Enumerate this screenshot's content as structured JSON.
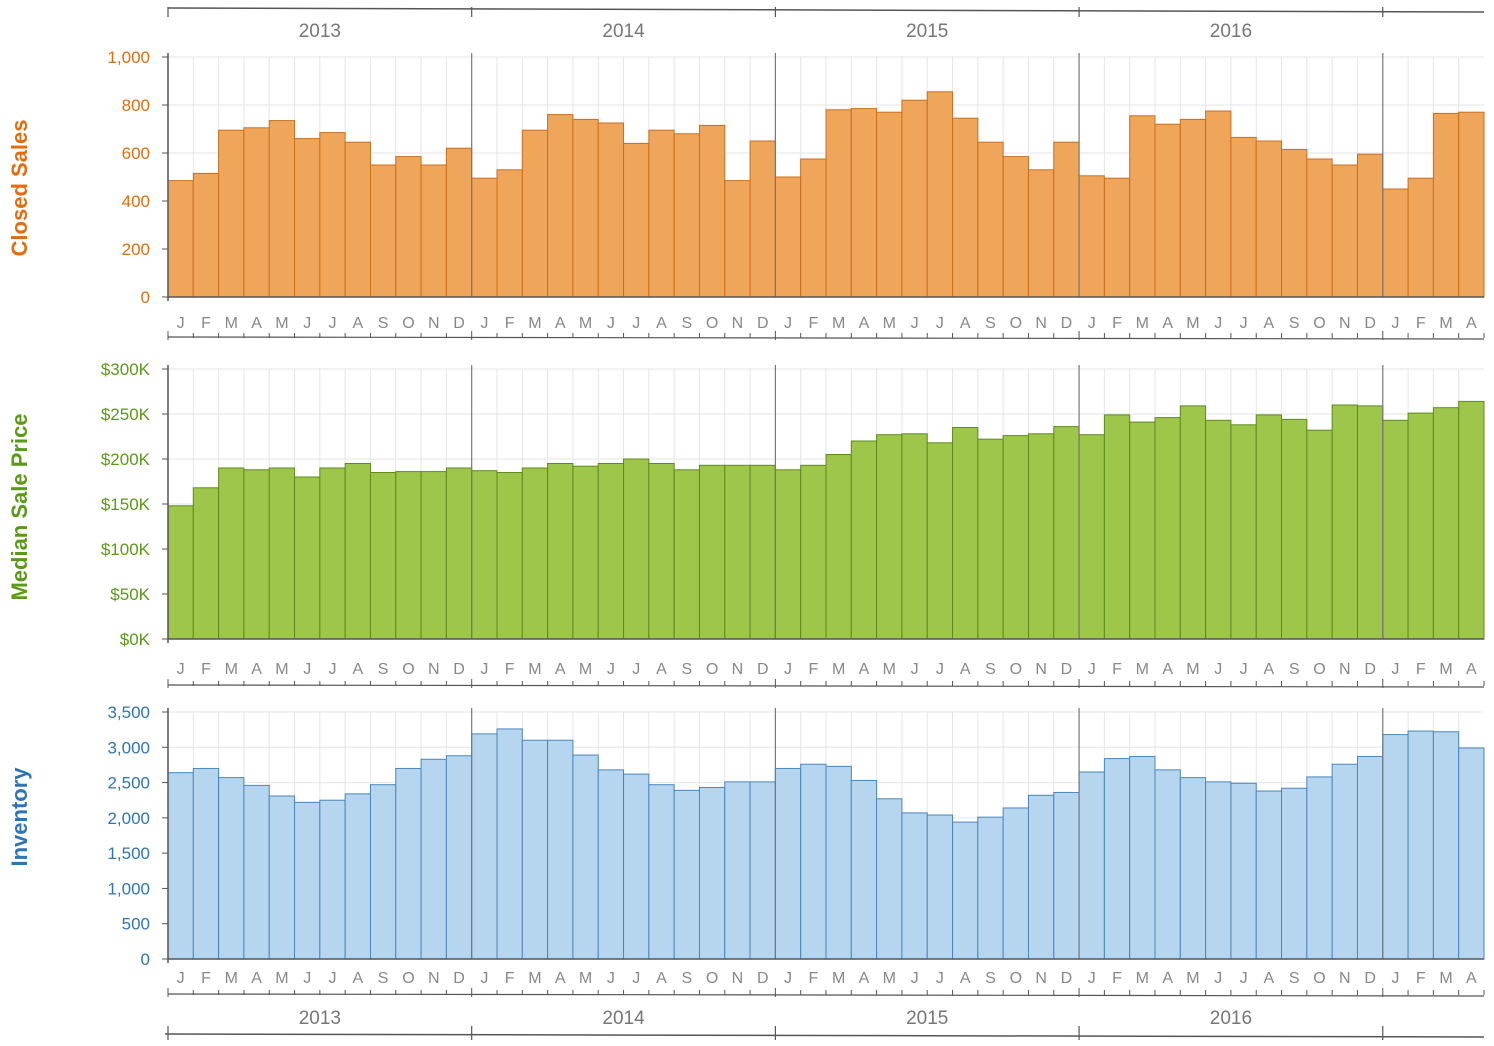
{
  "years": [
    "2013",
    "2014",
    "2015",
    "2016"
  ],
  "month_letters": [
    "J",
    "F",
    "M",
    "A",
    "M",
    "J",
    "J",
    "A",
    "S",
    "O",
    "N",
    "D",
    "J",
    "F",
    "M",
    "A",
    "M",
    "J",
    "J",
    "A",
    "S",
    "O",
    "N",
    "D",
    "J",
    "F",
    "M",
    "A",
    "M",
    "J",
    "J",
    "A",
    "S",
    "O",
    "N",
    "D",
    "J",
    "F",
    "M",
    "A",
    "M",
    "J",
    "J",
    "A",
    "S",
    "O",
    "N",
    "D",
    "J",
    "F",
    "M",
    "A"
  ],
  "colors": {
    "sales_fill": "#f0a65a",
    "sales_stroke": "#c96f1e",
    "sales_label": "#e46c0a",
    "price_fill": "#9dc64a",
    "price_stroke": "#5f8a1e",
    "price_label": "#5a9a16",
    "inv_fill": "#b6d6f0",
    "inv_stroke": "#4a86bb",
    "inv_label": "#2e75b6",
    "axis": "#555555",
    "grid": "#e6e6e6",
    "year_text": "#777777",
    "month_text": "#888888"
  },
  "chart_data": [
    {
      "type": "bar",
      "ylabel": "Closed Sales",
      "ylim": [
        0,
        1000
      ],
      "yticks": [
        "0",
        "200",
        "400",
        "600",
        "800",
        "1,000"
      ],
      "grid": true,
      "x": [
        "Jan 2013",
        "Feb 2013",
        "Mar 2013",
        "Apr 2013",
        "May 2013",
        "Jun 2013",
        "Jul 2013",
        "Aug 2013",
        "Sep 2013",
        "Oct 2013",
        "Nov 2013",
        "Dec 2013",
        "Jan 2014",
        "Feb 2014",
        "Mar 2014",
        "Apr 2014",
        "May 2014",
        "Jun 2014",
        "Jul 2014",
        "Aug 2014",
        "Sep 2014",
        "Oct 2014",
        "Nov 2014",
        "Dec 2014",
        "Jan 2015",
        "Feb 2015",
        "Mar 2015",
        "Apr 2015",
        "May 2015",
        "Jun 2015",
        "Jul 2015",
        "Aug 2015",
        "Sep 2015",
        "Oct 2015",
        "Nov 2015",
        "Dec 2015",
        "Jan 2016",
        "Feb 2016",
        "Mar 2016",
        "Apr 2016",
        "May 2016",
        "Jun 2016",
        "Jul 2016",
        "Aug 2016",
        "Sep 2016",
        "Oct 2016",
        "Nov 2016",
        "Dec 2016",
        "Jan 2017",
        "Feb 2017",
        "Mar 2017",
        "Apr 2017"
      ],
      "values": [
        485,
        515,
        695,
        705,
        735,
        660,
        685,
        645,
        550,
        585,
        550,
        620,
        495,
        530,
        695,
        760,
        740,
        725,
        640,
        695,
        680,
        715,
        485,
        650,
        500,
        575,
        780,
        785,
        770,
        820,
        855,
        745,
        645,
        585,
        530,
        645,
        505,
        495,
        755,
        720,
        740,
        775,
        665,
        650,
        615,
        575,
        550,
        595,
        450,
        495,
        765,
        770
      ]
    },
    {
      "type": "bar",
      "ylabel": "Median Sale Price",
      "ylim": [
        0,
        300000
      ],
      "yticks": [
        "$0K",
        "$50K",
        "$100K",
        "$150K",
        "$200K",
        "$250K",
        "$300K"
      ],
      "grid": true,
      "x": [
        "Jan 2013",
        "Feb 2013",
        "Mar 2013",
        "Apr 2013",
        "May 2013",
        "Jun 2013",
        "Jul 2013",
        "Aug 2013",
        "Sep 2013",
        "Oct 2013",
        "Nov 2013",
        "Dec 2013",
        "Jan 2014",
        "Feb 2014",
        "Mar 2014",
        "Apr 2014",
        "May 2014",
        "Jun 2014",
        "Jul 2014",
        "Aug 2014",
        "Sep 2014",
        "Oct 2014",
        "Nov 2014",
        "Dec 2014",
        "Jan 2015",
        "Feb 2015",
        "Mar 2015",
        "Apr 2015",
        "May 2015",
        "Jun 2015",
        "Jul 2015",
        "Aug 2015",
        "Sep 2015",
        "Oct 2015",
        "Nov 2015",
        "Dec 2015",
        "Jan 2016",
        "Feb 2016",
        "Mar 2016",
        "Apr 2016",
        "May 2016",
        "Jun 2016",
        "Jul 2016",
        "Aug 2016",
        "Sep 2016",
        "Oct 2016",
        "Nov 2016",
        "Dec 2016",
        "Jan 2017",
        "Feb 2017",
        "Mar 2017",
        "Apr 2017"
      ],
      "values": [
        148000,
        168000,
        190000,
        188000,
        190000,
        180000,
        190000,
        195000,
        185000,
        186000,
        186000,
        190000,
        187000,
        185000,
        190000,
        195000,
        192000,
        195000,
        200000,
        195000,
        188000,
        193000,
        193000,
        193000,
        188000,
        193000,
        205000,
        220000,
        227000,
        228000,
        218000,
        235000,
        222000,
        226000,
        228000,
        236000,
        227000,
        249000,
        241000,
        246000,
        259000,
        243000,
        238000,
        249000,
        244000,
        232000,
        260000,
        259000,
        243000,
        251000,
        257000,
        264000
      ]
    },
    {
      "type": "bar",
      "ylabel": "Inventory",
      "ylim": [
        0,
        3500
      ],
      "yticks": [
        "0",
        "500",
        "1,000",
        "1,500",
        "2,000",
        "2,500",
        "3,000",
        "3,500"
      ],
      "grid": true,
      "x": [
        "Jan 2013",
        "Feb 2013",
        "Mar 2013",
        "Apr 2013",
        "May 2013",
        "Jun 2013",
        "Jul 2013",
        "Aug 2013",
        "Sep 2013",
        "Oct 2013",
        "Nov 2013",
        "Dec 2013",
        "Jan 2014",
        "Feb 2014",
        "Mar 2014",
        "Apr 2014",
        "May 2014",
        "Jun 2014",
        "Jul 2014",
        "Aug 2014",
        "Sep 2014",
        "Oct 2014",
        "Nov 2014",
        "Dec 2014",
        "Jan 2015",
        "Feb 2015",
        "Mar 2015",
        "Apr 2015",
        "May 2015",
        "Jun 2015",
        "Jul 2015",
        "Aug 2015",
        "Sep 2015",
        "Oct 2015",
        "Nov 2015",
        "Dec 2015",
        "Jan 2016",
        "Feb 2016",
        "Mar 2016",
        "Apr 2016",
        "May 2016",
        "Jun 2016",
        "Jul 2016",
        "Aug 2016",
        "Sep 2016",
        "Oct 2016",
        "Nov 2016",
        "Dec 2016",
        "Jan 2017",
        "Feb 2017",
        "Mar 2017",
        "Apr 2017"
      ],
      "values": [
        2640,
        2700,
        2570,
        2460,
        2310,
        2220,
        2250,
        2340,
        2470,
        2700,
        2830,
        2880,
        3190,
        3260,
        3100,
        3100,
        2890,
        2680,
        2620,
        2470,
        2390,
        2430,
        2510,
        2510,
        2700,
        2760,
        2730,
        2530,
        2270,
        2070,
        2040,
        1940,
        2010,
        2140,
        2320,
        2360,
        2650,
        2840,
        2870,
        2680,
        2570,
        2510,
        2490,
        2380,
        2420,
        2580,
        2760,
        2870,
        3180,
        3230,
        3220,
        2990
      ]
    }
  ]
}
